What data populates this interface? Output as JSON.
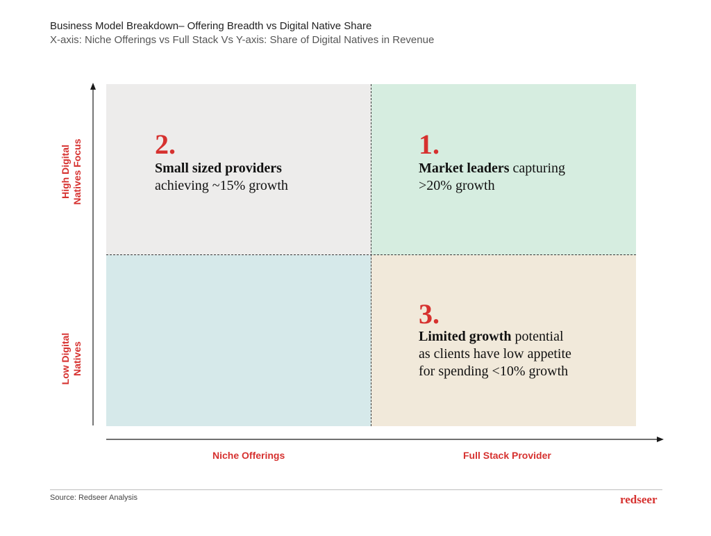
{
  "header": {
    "title": "Business Model Breakdown– Offering Breadth vs Digital Native Share",
    "subtitle": "X-axis: Niche Offerings vs Full Stack Vs Y-axis: Share of Digital Natives in Revenue"
  },
  "axes": {
    "y_high": [
      "High Digital",
      "Natives Focus"
    ],
    "y_low": [
      "Low Digital",
      "Natives"
    ],
    "x_left": "Niche Offerings",
    "x_right": "Full Stack Provider"
  },
  "quadrants": {
    "top_left": {
      "number": "2.",
      "bold": "Small sized providers",
      "rest_lines": [
        "achieving ~15% growth"
      ],
      "color": "#edeceb"
    },
    "top_right": {
      "number": "1.",
      "bold": "Market leaders",
      "first_line_rest": " capturing",
      "rest_lines": [
        ">20% growth"
      ],
      "color": "#d6ede0"
    },
    "bottom_left": {
      "color": "#d6e9ea"
    },
    "bottom_right": {
      "number": "3.",
      "bold": "Limited growth",
      "first_line_rest": " potential",
      "rest_lines": [
        "as clients have low appetite",
        "for spending <10% growth"
      ],
      "color": "#f1e9da"
    }
  },
  "footer": {
    "source": "Source: Redseer Analysis",
    "logo": "redseer"
  },
  "colors": {
    "accent": "#d6312f",
    "text": "#1f1f1f"
  }
}
